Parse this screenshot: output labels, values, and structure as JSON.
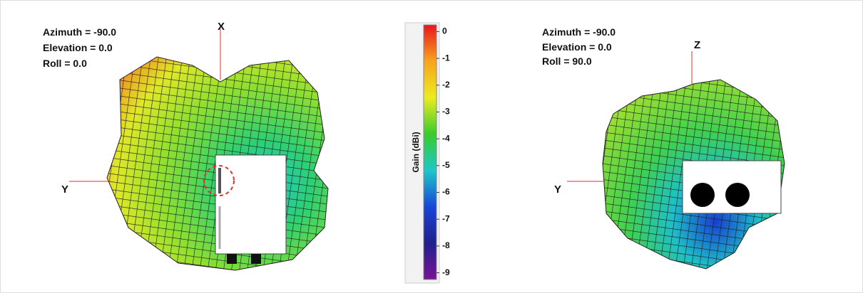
{
  "left_view": {
    "orientation": [
      "Azimuth = -90.0",
      "Elevation = 0.0",
      "Roll = 0.0"
    ],
    "axes": [
      "X",
      "Y"
    ]
  },
  "right_view": {
    "orientation": [
      "Azimuth = -90.0",
      "Elevation = 0.0",
      "Roll = 90.0"
    ],
    "axes": [
      "Z",
      "Y"
    ]
  },
  "colorbar": {
    "label": "Gain (dBi)",
    "lim": [
      -9.25,
      0.25
    ],
    "ticks": [
      0,
      -1,
      -2,
      -3,
      -4,
      -5,
      -6,
      -7,
      -8,
      -9
    ],
    "colors": [
      "#e8141c",
      "#f7a51b",
      "#ecec20",
      "#38cc2c",
      "#1dc8c8",
      "#1846d8",
      "#20208c",
      "#7a1496"
    ]
  }
}
